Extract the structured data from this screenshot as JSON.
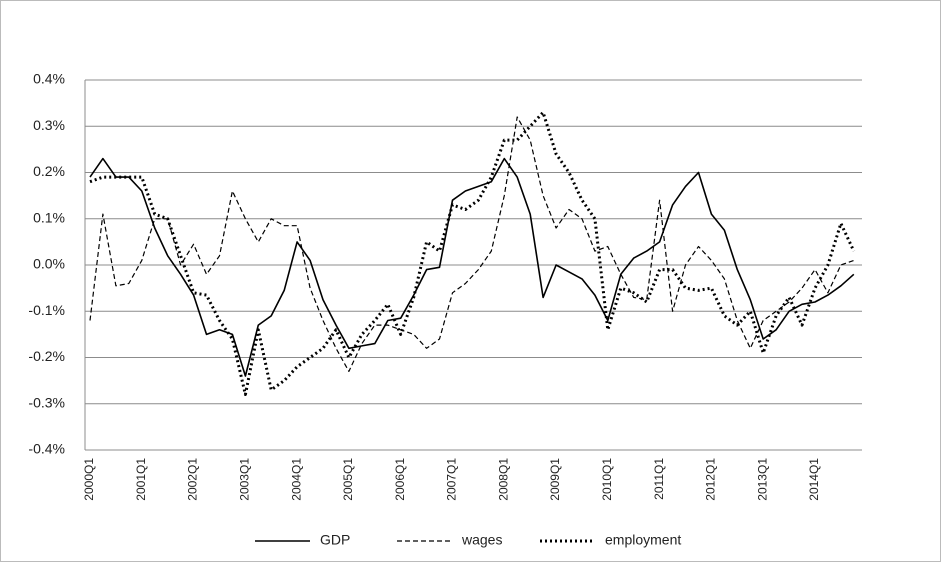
{
  "chart_data": {
    "type": "line",
    "categories": [
      "2000Q1",
      null,
      null,
      null,
      "2001Q1",
      null,
      null,
      null,
      "2002Q1",
      null,
      null,
      null,
      "2003Q1",
      null,
      null,
      null,
      "2004Q1",
      null,
      null,
      null,
      "2005Q1",
      null,
      null,
      null,
      "2006Q1",
      null,
      null,
      null,
      "2007Q1",
      null,
      null,
      null,
      "2008Q1",
      null,
      null,
      null,
      "2009Q1",
      null,
      null,
      null,
      "2010Q1",
      null,
      null,
      null,
      "2011Q1",
      null,
      null,
      null,
      "2012Q1",
      null,
      null,
      null,
      "2013Q1",
      null,
      null,
      null,
      "2014Q1",
      null,
      null,
      null
    ],
    "series": [
      {
        "name": "GDP",
        "color": "#000000",
        "style": "solid",
        "values": [
          0.19,
          0.23,
          0.19,
          0.19,
          0.16,
          0.08,
          0.02,
          -0.02,
          -0.065,
          -0.15,
          -0.14,
          -0.15,
          -0.24,
          -0.13,
          -0.11,
          -0.055,
          0.05,
          0.01,
          -0.075,
          -0.13,
          -0.18,
          -0.175,
          -0.17,
          -0.12,
          -0.115,
          -0.065,
          -0.01,
          -0.005,
          0.14,
          0.16,
          0.17,
          0.18,
          0.23,
          0.19,
          0.11,
          -0.07,
          0.0,
          -0.015,
          -0.03,
          -0.065,
          -0.12,
          -0.02,
          0.015,
          0.03,
          0.05,
          0.13,
          0.17,
          0.2,
          0.11,
          0.075,
          -0.01,
          -0.075,
          -0.16,
          -0.14,
          -0.1,
          -0.085,
          -0.08,
          -0.065,
          -0.045,
          -0.02
        ]
      },
      {
        "name": "wages",
        "color": "#000000",
        "style": "dashed",
        "values": [
          -0.12,
          0.11,
          -0.045,
          -0.04,
          0.01,
          0.1,
          0.1,
          0.0,
          0.045,
          -0.02,
          0.02,
          0.16,
          0.1,
          0.05,
          0.1,
          0.085,
          0.085,
          -0.05,
          -0.12,
          -0.18,
          -0.23,
          -0.17,
          -0.13,
          -0.13,
          -0.14,
          -0.15,
          -0.18,
          -0.16,
          -0.06,
          -0.04,
          -0.01,
          0.03,
          0.15,
          0.32,
          0.27,
          0.15,
          0.08,
          0.12,
          0.1,
          0.03,
          0.04,
          -0.02,
          -0.07,
          -0.075,
          0.14,
          -0.1,
          0.0,
          0.04,
          0.01,
          -0.03,
          -0.12,
          -0.18,
          -0.12,
          -0.1,
          -0.08,
          -0.05,
          -0.01,
          -0.06,
          0.0,
          0.01
        ]
      },
      {
        "name": "employment",
        "color": "#000000",
        "style": "dotted",
        "values": [
          0.18,
          0.19,
          0.19,
          0.19,
          0.19,
          0.11,
          0.1,
          0.02,
          -0.06,
          -0.065,
          -0.12,
          -0.16,
          -0.28,
          -0.14,
          -0.27,
          -0.25,
          -0.22,
          -0.2,
          -0.18,
          -0.14,
          -0.2,
          -0.15,
          -0.12,
          -0.085,
          -0.15,
          -0.07,
          0.05,
          0.03,
          0.13,
          0.12,
          0.14,
          0.19,
          0.27,
          0.27,
          0.3,
          0.33,
          0.24,
          0.2,
          0.14,
          0.1,
          -0.14,
          -0.05,
          -0.06,
          -0.08,
          -0.01,
          -0.01,
          -0.05,
          -0.055,
          -0.05,
          -0.11,
          -0.13,
          -0.1,
          -0.19,
          -0.11,
          -0.07,
          -0.13,
          -0.05,
          0.0,
          0.09,
          0.03
        ]
      }
    ],
    "ylim": [
      -0.4,
      0.4
    ],
    "yticks": [
      {
        "value": -0.4,
        "label": "-0.4%"
      },
      {
        "value": -0.3,
        "label": "-0.3%"
      },
      {
        "value": -0.2,
        "label": "-0.2%"
      },
      {
        "value": -0.1,
        "label": "-0.1%"
      },
      {
        "value": 0.0,
        "label": "0.0%"
      },
      {
        "value": 0.1,
        "label": "0.1%"
      },
      {
        "value": 0.2,
        "label": "0.2%"
      },
      {
        "value": 0.3,
        "label": "0.3%"
      },
      {
        "value": 0.4,
        "label": "0.4%"
      }
    ],
    "grid": true,
    "legend": "bottom"
  }
}
